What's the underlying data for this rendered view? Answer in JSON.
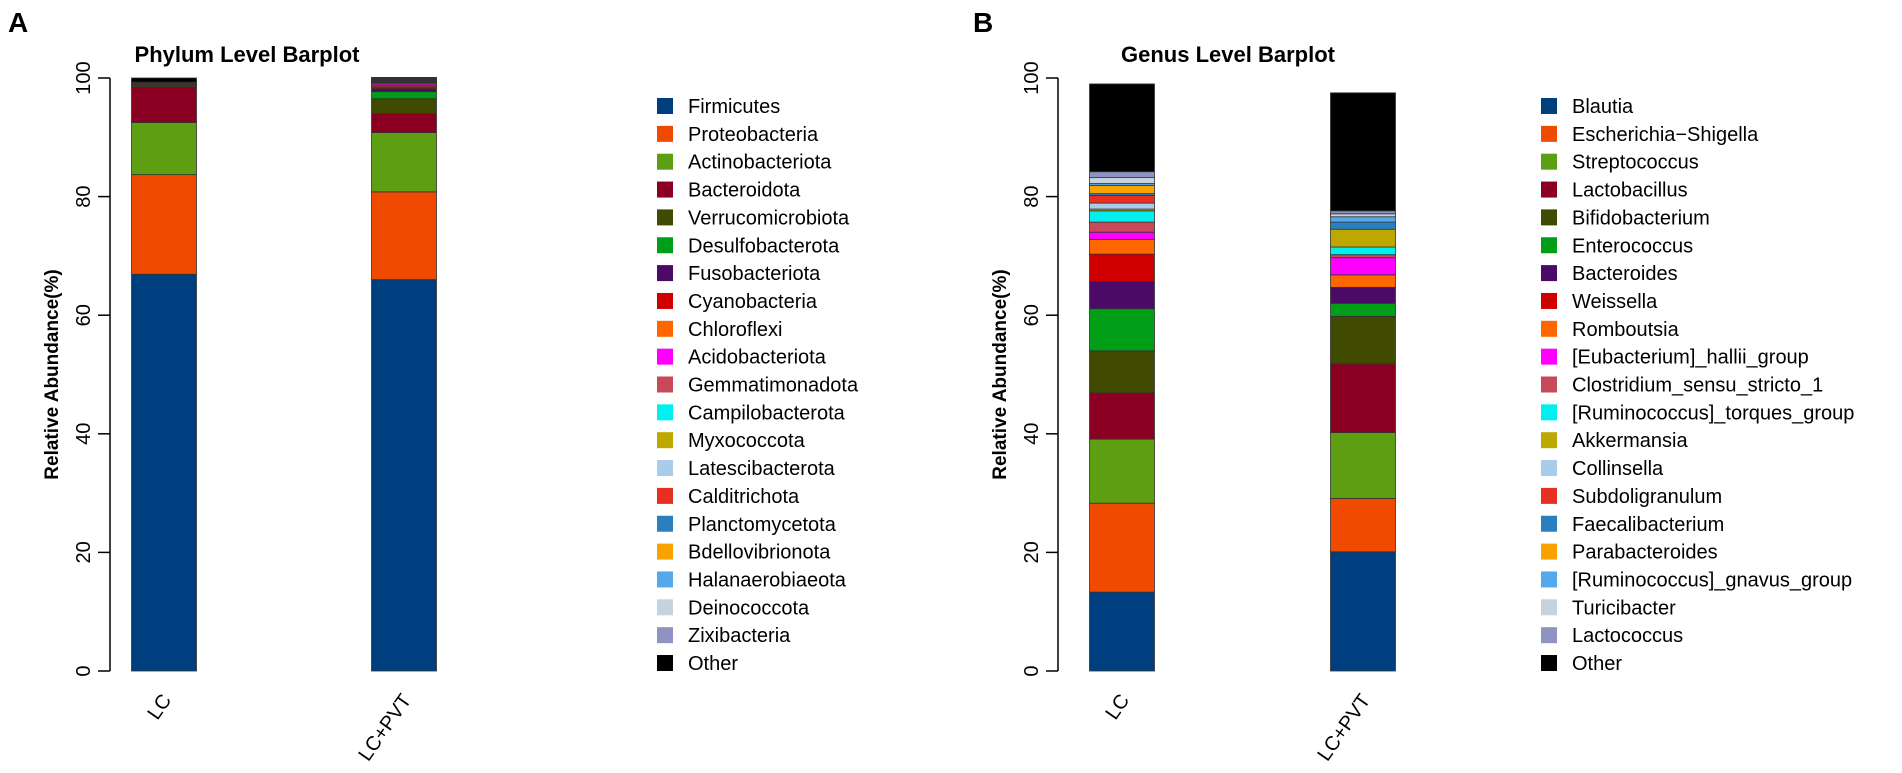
{
  "chart_data": [
    {
      "panel_label": "A",
      "type": "bar",
      "stacked": true,
      "title": "Phylum Level Barplot",
      "xlabel": "",
      "ylabel": "Relative Abundance(%)",
      "ylim": [
        0,
        100
      ],
      "yticks": [
        0,
        20,
        40,
        60,
        80,
        100
      ],
      "grid": false,
      "legend_position": "right",
      "categories": [
        "LC",
        "LC+PVT"
      ],
      "series": [
        {
          "name": "Firmicutes",
          "color": "#003f7f",
          "values": [
            66.9,
            66.0
          ]
        },
        {
          "name": "Proteobacteria",
          "color": "#f04a00",
          "values": [
            16.8,
            14.8
          ]
        },
        {
          "name": "Actinobacteriota",
          "color": "#5e9e12",
          "values": [
            8.8,
            10.0
          ]
        },
        {
          "name": "Bacteroidota",
          "color": "#8b0022",
          "values": [
            6.0,
            3.2
          ]
        },
        {
          "name": "Verrucomicrobiota",
          "color": "#404a00",
          "values": [
            0.3,
            2.5
          ]
        },
        {
          "name": "Desulfobacterota",
          "color": "#009e16",
          "values": [
            0.1,
            1.2
          ]
        },
        {
          "name": "Fusobacteriota",
          "color": "#4a0a66",
          "values": [
            0.0,
            0.5
          ]
        },
        {
          "name": "Cyanobacteria",
          "color": "#d10000",
          "values": [
            0.2,
            0.3
          ]
        },
        {
          "name": "Chloroflexi",
          "color": "#ff6600",
          "values": [
            0.0,
            0.2
          ]
        },
        {
          "name": "Acidobacteriota",
          "color": "#ff00ff",
          "values": [
            0.0,
            0.3
          ]
        },
        {
          "name": "Gemmatimonadota",
          "color": "#c84a5a",
          "values": [
            0.1,
            0.2
          ]
        },
        {
          "name": "Campilobacterota",
          "color": "#00f0f0",
          "values": [
            0.0,
            0.1
          ]
        },
        {
          "name": "Myxococcota",
          "color": "#bca800",
          "values": [
            0.0,
            0.1
          ]
        },
        {
          "name": "Latescibacterota",
          "color": "#a8cdea",
          "values": [
            0.0,
            0.1
          ]
        },
        {
          "name": "Calditrichota",
          "color": "#e83020",
          "values": [
            0.1,
            0.1
          ]
        },
        {
          "name": "Planctomycetota",
          "color": "#2a80bf",
          "values": [
            0.0,
            0.1
          ]
        },
        {
          "name": "Bdellovibrionota",
          "color": "#f8a300",
          "values": [
            0.0,
            0.1
          ]
        },
        {
          "name": "Halanaerobiaeota",
          "color": "#55a8ee",
          "values": [
            0.0,
            0.1
          ]
        },
        {
          "name": "Deinococcota",
          "color": "#c4d3de",
          "values": [
            0.0,
            0.1
          ]
        },
        {
          "name": "Zixibacteria",
          "color": "#8f93c2",
          "values": [
            0.0,
            0.1
          ]
        },
        {
          "name": "Other",
          "color": "#000000",
          "values": [
            0.7,
            0.0
          ]
        }
      ]
    },
    {
      "panel_label": "B",
      "type": "bar",
      "stacked": true,
      "title": "Genus Level Barplot",
      "xlabel": "",
      "ylabel": "Relative Abundance(%)",
      "ylim": [
        0,
        100
      ],
      "yticks": [
        0,
        20,
        40,
        60,
        80,
        100
      ],
      "grid": false,
      "legend_position": "right",
      "categories": [
        "LC",
        "LC+PVT"
      ],
      "series": [
        {
          "name": "Blautia",
          "color": "#003f7f",
          "values": [
            13.3,
            20.1
          ]
        },
        {
          "name": "Escherichia−Shigella",
          "color": "#f04a00",
          "values": [
            15.0,
            9.0
          ]
        },
        {
          "name": "Streptococcus",
          "color": "#5e9e12",
          "values": [
            10.8,
            11.1
          ]
        },
        {
          "name": "Lactobacillus",
          "color": "#8b0022",
          "values": [
            7.8,
            11.6
          ]
        },
        {
          "name": "Bifidobacterium",
          "color": "#404a00",
          "values": [
            7.1,
            8.0
          ]
        },
        {
          "name": "Enterococcus",
          "color": "#009e16",
          "values": [
            7.1,
            2.2
          ]
        },
        {
          "name": "Bacteroides",
          "color": "#4a0a66",
          "values": [
            4.6,
            2.7
          ]
        },
        {
          "name": "Weissella",
          "color": "#d10000",
          "values": [
            4.6,
            0.0
          ]
        },
        {
          "name": "Romboutsia",
          "color": "#ff6600",
          "values": [
            2.5,
            2.1
          ]
        },
        {
          "name": "[Eubacterium]_hallii_group",
          "color": "#ff00ff",
          "values": [
            1.2,
            2.9
          ]
        },
        {
          "name": "Clostridium_sensu_stricto_1",
          "color": "#c84a5a",
          "values": [
            1.7,
            0.5
          ]
        },
        {
          "name": "[Ruminococcus]_torques_group",
          "color": "#00f0f0",
          "values": [
            1.9,
            1.3
          ]
        },
        {
          "name": "Akkermansia",
          "color": "#bca800",
          "values": [
            0.3,
            3.0
          ]
        },
        {
          "name": "Collinsella",
          "color": "#a8cdea",
          "values": [
            1.0,
            0.0
          ]
        },
        {
          "name": "Subdoligranulum",
          "color": "#e83020",
          "values": [
            1.3,
            0.0
          ]
        },
        {
          "name": "Faecalibacterium",
          "color": "#2a80bf",
          "values": [
            0.3,
            1.2
          ]
        },
        {
          "name": "Parabacteroides",
          "color": "#f8a300",
          "values": [
            1.4,
            0.0
          ]
        },
        {
          "name": "[Ruminococcus]_gnavus_group",
          "color": "#55a8ee",
          "values": [
            0.3,
            0.9
          ]
        },
        {
          "name": "Turicibacter",
          "color": "#c4d3de",
          "values": [
            1.0,
            0.5
          ]
        },
        {
          "name": "Lactococcus",
          "color": "#8f93c2",
          "values": [
            1.0,
            0.5
          ]
        },
        {
          "name": "Other",
          "color": "#000000",
          "values": [
            14.8,
            19.9
          ]
        }
      ]
    }
  ]
}
